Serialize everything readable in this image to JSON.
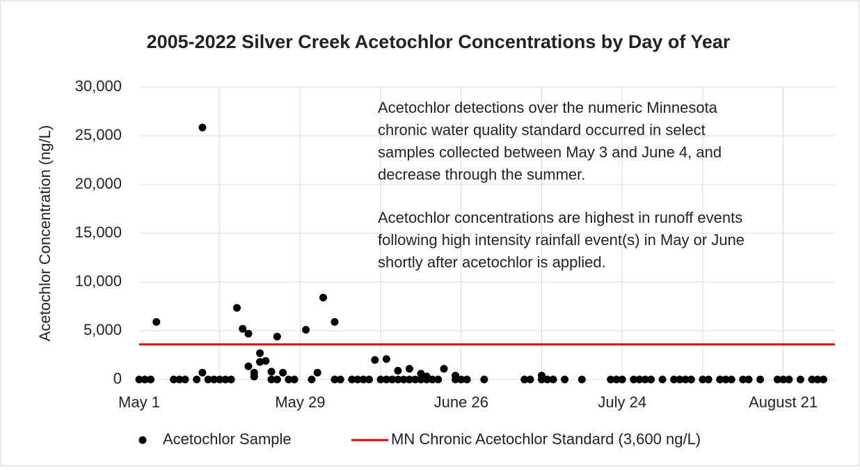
{
  "chart_data": {
    "type": "scatter",
    "title": "2005-2022 Silver Creek Acetochlor Concentrations by Day of Year",
    "ylabel": "Acetochlor Concentration (ng/L)",
    "annotations": [
      [
        "Acetochlor detections over the numeric Minnesota",
        "chronic water quality standard  occurred in select",
        "samples collected between May 3 and June 4, and",
        "decrease through the summer."
      ],
      [
        "Acetochlor concentrations are highest in runoff events",
        "following high intensity rainfall event(s) in May or June",
        "shortly after acetochlor is applied."
      ]
    ],
    "series": [
      {
        "name": "Acetochlor Sample",
        "color": "#000000",
        "x": [
          124,
          132,
          132,
          138,
          139,
          140,
          140,
          141,
          141,
          142,
          142,
          143,
          144,
          145,
          146,
          150,
          152,
          153,
          155,
          162,
          164,
          166,
          168,
          170,
          171,
          174,
          176,
          191,
          121,
          122,
          123,
          127,
          128,
          129,
          131,
          133,
          134,
          135,
          136,
          137,
          144,
          145,
          147,
          148,
          151,
          155,
          156,
          158,
          159,
          160,
          161,
          163,
          164,
          165,
          166,
          167,
          168,
          169,
          170,
          171,
          172,
          173,
          176,
          177,
          178,
          181,
          188,
          189,
          191,
          192,
          193,
          195,
          198,
          203,
          204,
          205,
          207,
          208,
          209,
          210,
          212,
          214,
          215,
          216,
          217,
          219,
          220,
          222,
          223,
          224,
          226,
          227,
          229,
          232,
          233,
          234,
          236,
          238,
          239,
          240
        ],
        "values": [
          5900,
          25850,
          700,
          7350,
          5200,
          4700,
          1350,
          300,
          700,
          2700,
          1800,
          1900,
          800,
          4400,
          700,
          5100,
          700,
          8400,
          5900,
          2000,
          2100,
          900,
          1100,
          600,
          300,
          1100,
          400,
          400,
          0,
          0,
          0,
          0,
          0,
          0,
          0,
          0,
          0,
          0,
          0,
          0,
          0,
          0,
          0,
          0,
          0,
          0,
          0,
          0,
          0,
          0,
          0,
          0,
          0,
          0,
          0,
          0,
          0,
          0,
          0,
          0,
          0,
          0,
          0,
          0,
          0,
          0,
          0,
          0,
          0,
          0,
          0,
          0,
          0,
          0,
          0,
          0,
          0,
          0,
          0,
          0,
          0,
          0,
          0,
          0,
          0,
          0,
          0,
          0,
          0,
          0,
          0,
          0,
          0,
          0,
          0,
          0,
          0,
          0,
          0,
          0
        ]
      }
    ],
    "reference_lines": [
      {
        "name": "MN Chronic Acetochlor Standard (3,600 ng/L)",
        "value": 3600,
        "color": "#e00000"
      }
    ],
    "xlim": [
      121,
      242
    ],
    "xticks": [
      {
        "value": 121,
        "label": "May 1"
      },
      {
        "value": 149,
        "label": "May 29"
      },
      {
        "value": 177,
        "label": "June 26"
      },
      {
        "value": 205,
        "label": "July 24"
      },
      {
        "value": 233,
        "label": "August 21"
      }
    ],
    "xminorticks": [
      135,
      163,
      191,
      219
    ],
    "ylim": [
      0,
      30000
    ],
    "yticks": [
      0,
      {
        "value": 5000,
        "label": "5,000"
      },
      {
        "value": 10000,
        "label": "10,000"
      },
      {
        "value": 15000,
        "label": "15,000"
      },
      {
        "value": 20000,
        "label": "20,000"
      },
      {
        "value": 25000,
        "label": "25,000"
      },
      {
        "value": 30000,
        "label": "30,000"
      }
    ],
    "grid": true,
    "legend": "bottom"
  }
}
